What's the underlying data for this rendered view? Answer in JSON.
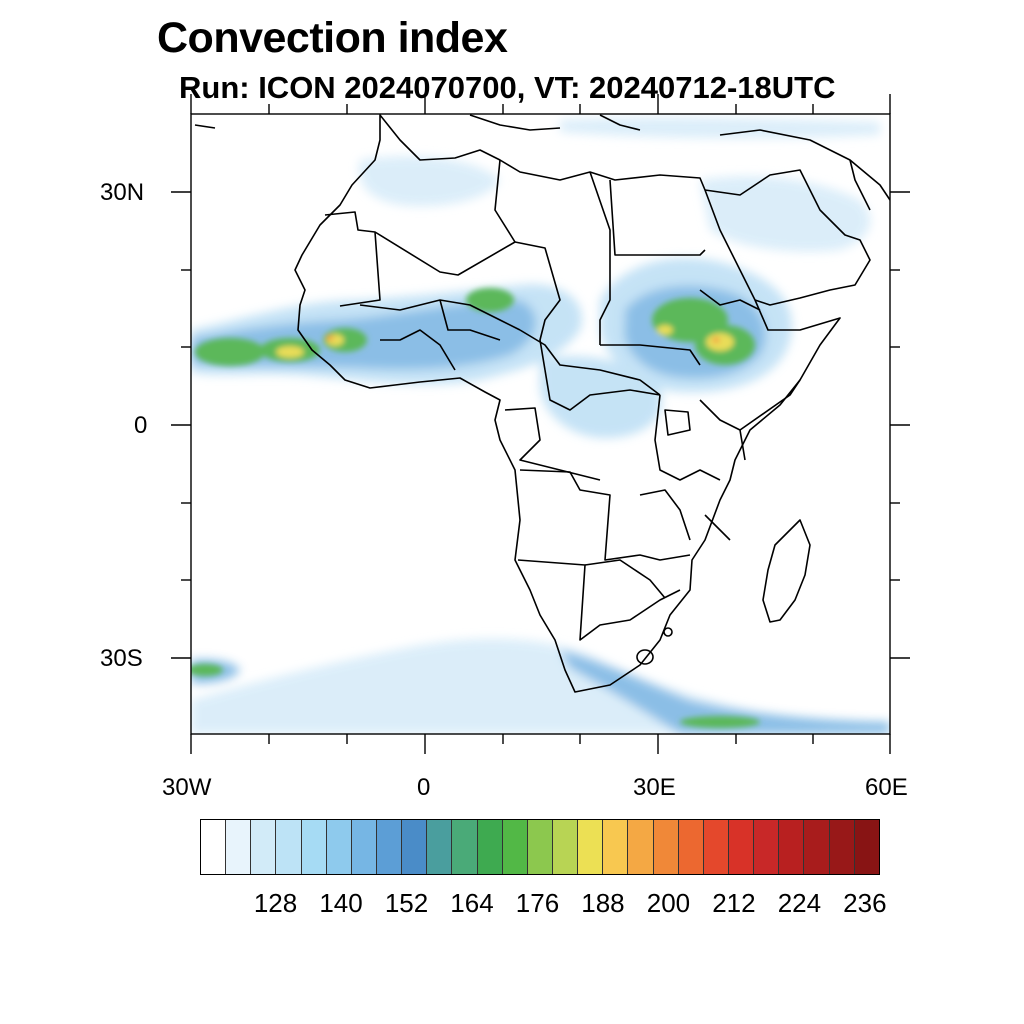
{
  "title": "Convection index",
  "subtitle": "Run: ICON 2024070700,  VT: 20240712-18UTC",
  "axes": {
    "lat_labels": [
      "30N",
      "0",
      "30S"
    ],
    "lon_labels": [
      "30W",
      "0",
      "30E",
      "60E"
    ],
    "lon_range": [
      -30,
      60
    ],
    "lat_range": [
      -40,
      40
    ]
  },
  "colorbar": {
    "labels": [
      "128",
      "140",
      "152",
      "164",
      "176",
      "188",
      "200",
      "212",
      "224",
      "236"
    ],
    "colors": [
      "#ffffff",
      "#e8f4fc",
      "#d2ebf8",
      "#bde3f6",
      "#a6dbf4",
      "#8ecaed",
      "#76b6e4",
      "#5c9ed6",
      "#4a8cc8",
      "#4a9e9e",
      "#4aaa78",
      "#3eaa50",
      "#52b846",
      "#8cc84e",
      "#b8d454",
      "#ece054",
      "#f8c850",
      "#f4a844",
      "#f08838",
      "#ec6830",
      "#e4482c",
      "#d83228",
      "#c82828",
      "#b82020",
      "#a81c1c",
      "#981818",
      "#881414"
    ]
  },
  "field_colors": {
    "light_blue": "#bfe0f5",
    "mid_blue": "#7fb8e4",
    "dark_blue": "#5b9ad4",
    "green": "#5bb85a",
    "yellow": "#e9dd58",
    "orange": "#f2a444"
  }
}
